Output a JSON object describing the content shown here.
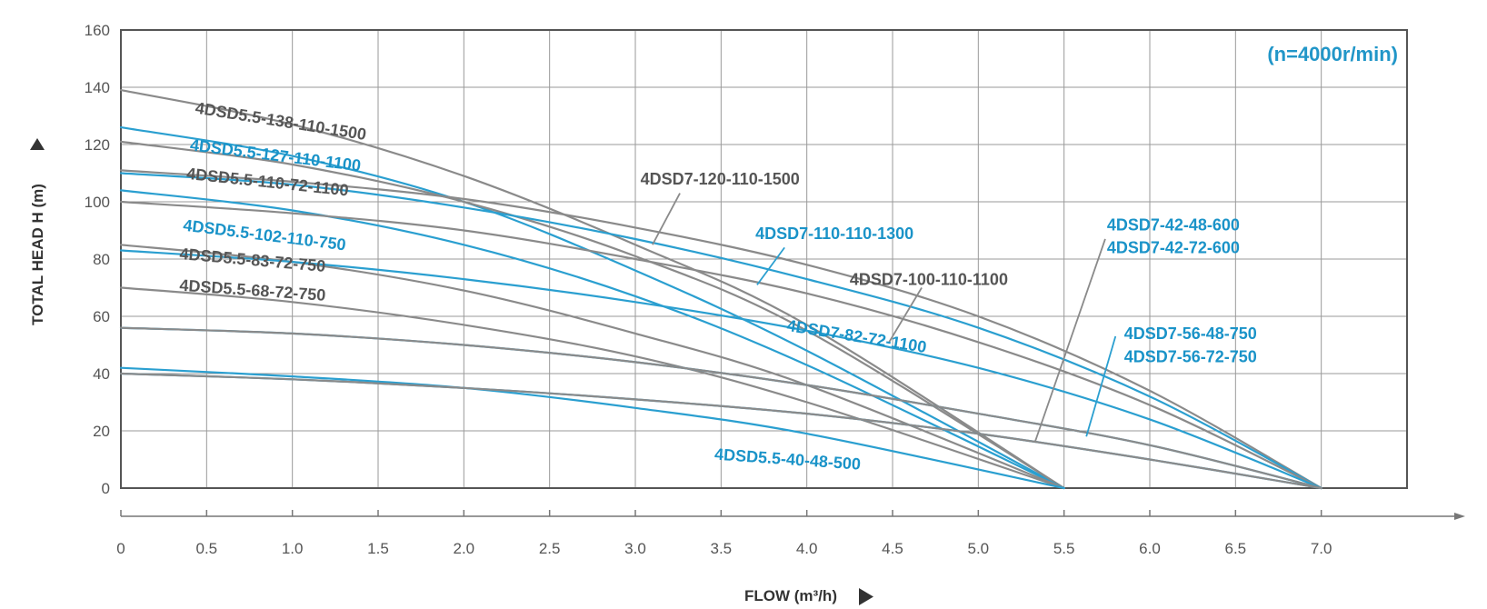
{
  "colors": {
    "gray": "#8a8a8a",
    "blue": "#2a9fd0",
    "gray_text": "#555555",
    "blue_text": "#1a93c8"
  },
  "chart_data": {
    "type": "line",
    "title": "",
    "xlabel": "FLOW (m³/h)",
    "ylabel": "TOTAL HEAD H (m)",
    "annotation": "(n=4000r/min)",
    "xlim": [
      0,
      7.5
    ],
    "ylim": [
      0,
      160
    ],
    "xticks": [
      "0",
      "0.5",
      "1.0",
      "1.5",
      "2.0",
      "2.5",
      "3.0",
      "3.5",
      "4.0",
      "4.5",
      "5.0",
      "5.5",
      "6.0",
      "6.5",
      "7.0"
    ],
    "yticks": [
      "0",
      "20",
      "40",
      "60",
      "80",
      "100",
      "120",
      "140",
      "160"
    ],
    "grid": true,
    "series": [
      {
        "name": "4DSD5.5-138-110-1500",
        "color": "gray",
        "x": [
          0,
          1,
          2,
          3,
          4,
          5.5
        ],
        "y": [
          139,
          127,
          109,
          85,
          57,
          0
        ]
      },
      {
        "name": "4DSD5.5-127-110-1100",
        "color": "blue",
        "x": [
          0,
          1,
          2,
          3,
          4,
          5.5
        ],
        "y": [
          126,
          116,
          100,
          76,
          48,
          0
        ]
      },
      {
        "name": "4DSD5.5-110-72-1100",
        "color": "gray",
        "x": [
          0,
          1,
          2,
          3,
          4,
          5.5
        ],
        "y": [
          121,
          113,
          100,
          81,
          55,
          0
        ]
      },
      {
        "name": "4DSD5.5-102-110-750",
        "color": "blue",
        "x": [
          0,
          1,
          2,
          3,
          4,
          5.5
        ],
        "y": [
          104,
          97,
          85,
          67,
          43,
          0
        ]
      },
      {
        "name": "4DSD5.5-83-72-750",
        "color": "gray",
        "x": [
          0,
          1,
          2,
          3,
          4,
          5.5
        ],
        "y": [
          85,
          79,
          69,
          54,
          36,
          0
        ]
      },
      {
        "name": "4DSD5.5-68-72-750",
        "color": "gray",
        "x": [
          0,
          1,
          2,
          3,
          4,
          5.5
        ],
        "y": [
          70,
          65,
          57,
          46,
          30,
          0
        ]
      },
      {
        "name": "4DSD5.5-40-48-500",
        "color": "blue",
        "x": [
          0,
          1,
          2,
          3,
          4,
          5.5
        ],
        "y": [
          42,
          39,
          35,
          28,
          19,
          0
        ]
      },
      {
        "name": "4DSD7-120-110-1500",
        "color": "gray",
        "x": [
          0,
          1,
          2,
          3,
          4,
          5,
          6,
          7
        ],
        "y": [
          111,
          107,
          101,
          91,
          78,
          60,
          34,
          0
        ]
      },
      {
        "name": "4DSD7-110-110-1300",
        "color": "blue",
        "x": [
          0,
          1,
          2,
          3,
          4,
          5,
          6,
          7
        ],
        "y": [
          110,
          106,
          98,
          87,
          73,
          56,
          32,
          0
        ]
      },
      {
        "name": "4DSD7-100-110-1100",
        "color": "gray",
        "x": [
          0,
          1,
          2,
          3,
          4,
          5,
          6,
          7
        ],
        "y": [
          100,
          96,
          90,
          80,
          68,
          51,
          29,
          0
        ]
      },
      {
        "name": "4DSD7-82-72-1100",
        "color": "blue",
        "x": [
          0,
          1,
          2,
          3,
          4,
          5,
          6,
          7
        ],
        "y": [
          83,
          79,
          73,
          65,
          55,
          42,
          24,
          0
        ]
      },
      {
        "name": "4DSD7-56-48-750",
        "color": "blue",
        "x": [
          0,
          1,
          2,
          3,
          4,
          5,
          6,
          7
        ],
        "y": [
          56,
          54,
          50,
          44,
          36,
          26,
          15,
          0
        ]
      },
      {
        "name": "4DSD7-56-72-750",
        "color": "gray",
        "x": [
          0,
          1,
          2,
          3,
          4,
          5,
          6,
          7
        ],
        "y": [
          56,
          54,
          50,
          44,
          36,
          26,
          15,
          0
        ]
      },
      {
        "name": "4DSD7-42-48-600",
        "color": "blue",
        "x": [
          0,
          1,
          2,
          3,
          4,
          5,
          6,
          7
        ],
        "y": [
          40,
          38,
          35,
          31,
          26,
          19,
          10,
          0
        ]
      },
      {
        "name": "4DSD7-42-72-600",
        "color": "gray",
        "x": [
          0,
          1,
          2,
          3,
          4,
          5,
          6,
          7
        ],
        "y": [
          40,
          38,
          35,
          31,
          26,
          19,
          10,
          0
        ]
      }
    ],
    "labels": [
      {
        "text": "4DSD5.5-138-110-1500",
        "color": "gray",
        "x": 0.43,
        "y": 131,
        "angle": 9
      },
      {
        "text": "4DSD5.5-127-110-1100",
        "color": "blue",
        "x": 0.4,
        "y": 118,
        "angle": 7
      },
      {
        "text": "4DSD5.5-110-72-1100",
        "color": "gray",
        "x": 0.38,
        "y": 108,
        "angle": 6
      },
      {
        "text": "4DSD5.5-102-110-750",
        "color": "blue",
        "x": 0.36,
        "y": 90,
        "angle": 7
      },
      {
        "text": "4DSD5.5-83-72-750",
        "color": "gray",
        "x": 0.34,
        "y": 80,
        "angle": 5
      },
      {
        "text": "4DSD5.5-68-72-750",
        "color": "gray",
        "x": 0.34,
        "y": 69,
        "angle": 4
      },
      {
        "text": "4DSD5.5-40-48-500",
        "color": "blue",
        "x": 3.46,
        "y": 10,
        "angle": 4
      },
      {
        "text": "4DSD7-120-110-1500",
        "color": "gray",
        "x": 3.03,
        "y": 106,
        "angle": 0
      },
      {
        "text": "4DSD7-110-110-1300",
        "color": "blue",
        "x": 3.7,
        "y": 87,
        "angle": 0
      },
      {
        "text": "4DSD7-100-110-1100",
        "color": "gray",
        "x": 4.25,
        "y": 71,
        "angle": 0
      },
      {
        "text": "4DSD7-82-72-1100",
        "color": "blue",
        "x": 3.88,
        "y": 55,
        "angle": 9
      },
      {
        "text": "4DSD7-56-48-750",
        "color": "blue",
        "x": 5.85,
        "y": 52,
        "angle": 0
      },
      {
        "text": "4DSD7-56-72-750",
        "color": "blue",
        "x": 5.85,
        "y": 44,
        "angle": 0
      },
      {
        "text": "4DSD7-42-48-600",
        "color": "blue",
        "x": 5.75,
        "y": 90,
        "angle": 0
      },
      {
        "text": "4DSD7-42-72-600",
        "color": "blue",
        "x": 5.75,
        "y": 82,
        "angle": 0
      }
    ],
    "leaders": [
      {
        "from": [
          3.26,
          103
        ],
        "to": [
          3.1,
          85
        ],
        "color": "gray"
      },
      {
        "from": [
          3.87,
          84
        ],
        "to": [
          3.71,
          71
        ],
        "color": "blue"
      },
      {
        "from": [
          4.67,
          70
        ],
        "to": [
          4.48,
          51
        ],
        "color": "gray"
      },
      {
        "from": [
          5.74,
          87
        ],
        "to": [
          5.33,
          16
        ],
        "color": "gray"
      },
      {
        "from": [
          5.8,
          53
        ],
        "to": [
          5.63,
          18
        ],
        "color": "blue"
      }
    ]
  }
}
